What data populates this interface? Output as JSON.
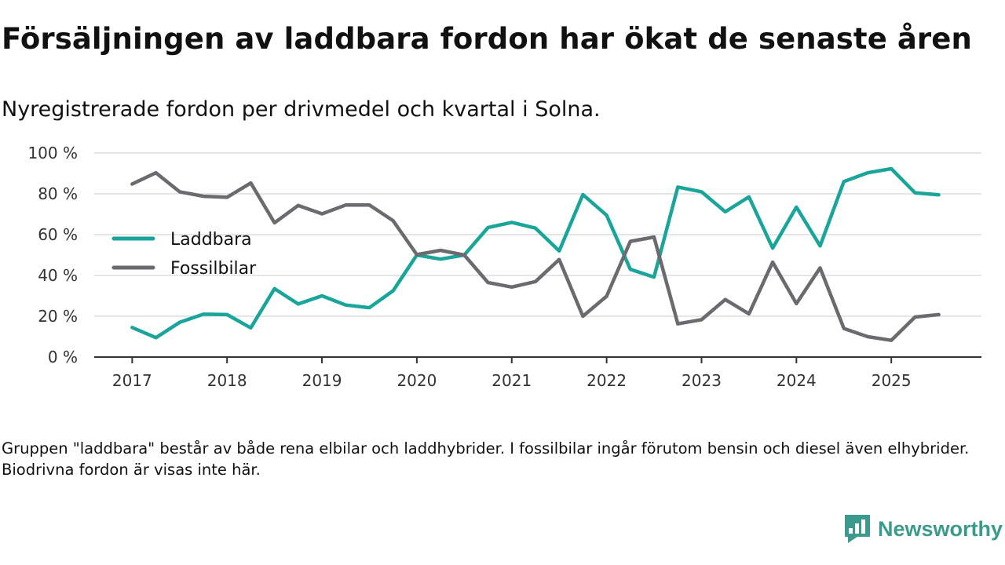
{
  "header": {
    "title": "Försäljningen av laddbara fordon har ökat de senaste åren",
    "subtitle": "Nyregistrerade fordon per drivmedel och kvartal i Solna."
  },
  "footnote": "Gruppen \"laddbara\" består av både rena elbilar och laddhybrider. I fossilbilar ingår förutom bensin och diesel även elhybrider. Biodrivna fordon är visas inte här.",
  "brand": {
    "name": "Newsworthy",
    "icon": "newsworthy-logo-icon",
    "color": "#3a9a8c"
  },
  "chart_data": {
    "type": "line",
    "title": "Försäljningen av laddbara fordon har ökat de senaste åren",
    "xlabel": "",
    "ylabel": "",
    "x_start": 2017.0,
    "x_step": 0.25,
    "xlim": [
      2016.6,
      2025.95
    ],
    "ylim": [
      0,
      100
    ],
    "x_ticks": [
      2017,
      2018,
      2019,
      2020,
      2021,
      2022,
      2023,
      2024,
      2025
    ],
    "y_ticks": [
      0,
      20,
      40,
      60,
      80,
      100
    ],
    "y_tick_labels": [
      "0 %",
      "20 %",
      "40 %",
      "60 %",
      "80 %",
      "100 %"
    ],
    "grid": true,
    "legend_position": "left",
    "series": [
      {
        "name": "Laddbara",
        "color": "#1aa59a",
        "values": [
          14.5,
          9.5,
          17,
          21,
          20.8,
          14.3,
          33.5,
          26,
          30,
          25.5,
          24.2,
          32.5,
          50,
          48,
          50,
          63.5,
          66,
          63.2,
          52,
          79.6,
          69.5,
          43,
          39.2,
          83.3,
          81,
          71.2,
          78.5,
          53.4,
          73.5,
          54.5,
          86,
          90.3,
          92.3,
          80.5,
          79.5
        ]
      },
      {
        "name": "Fossilbilar",
        "color": "#6b6a6f",
        "values": [
          84.8,
          90.3,
          81,
          78.8,
          78.3,
          85.3,
          65.8,
          74.3,
          70.2,
          74.5,
          74.5,
          66.8,
          50.2,
          52.3,
          50,
          36.5,
          34.3,
          37,
          47.8,
          20,
          29.8,
          56.7,
          58.8,
          16.3,
          18.3,
          28.2,
          21.2,
          46.5,
          26.2,
          43.7,
          14,
          10,
          8.2,
          19.6,
          20.8
        ]
      }
    ]
  }
}
